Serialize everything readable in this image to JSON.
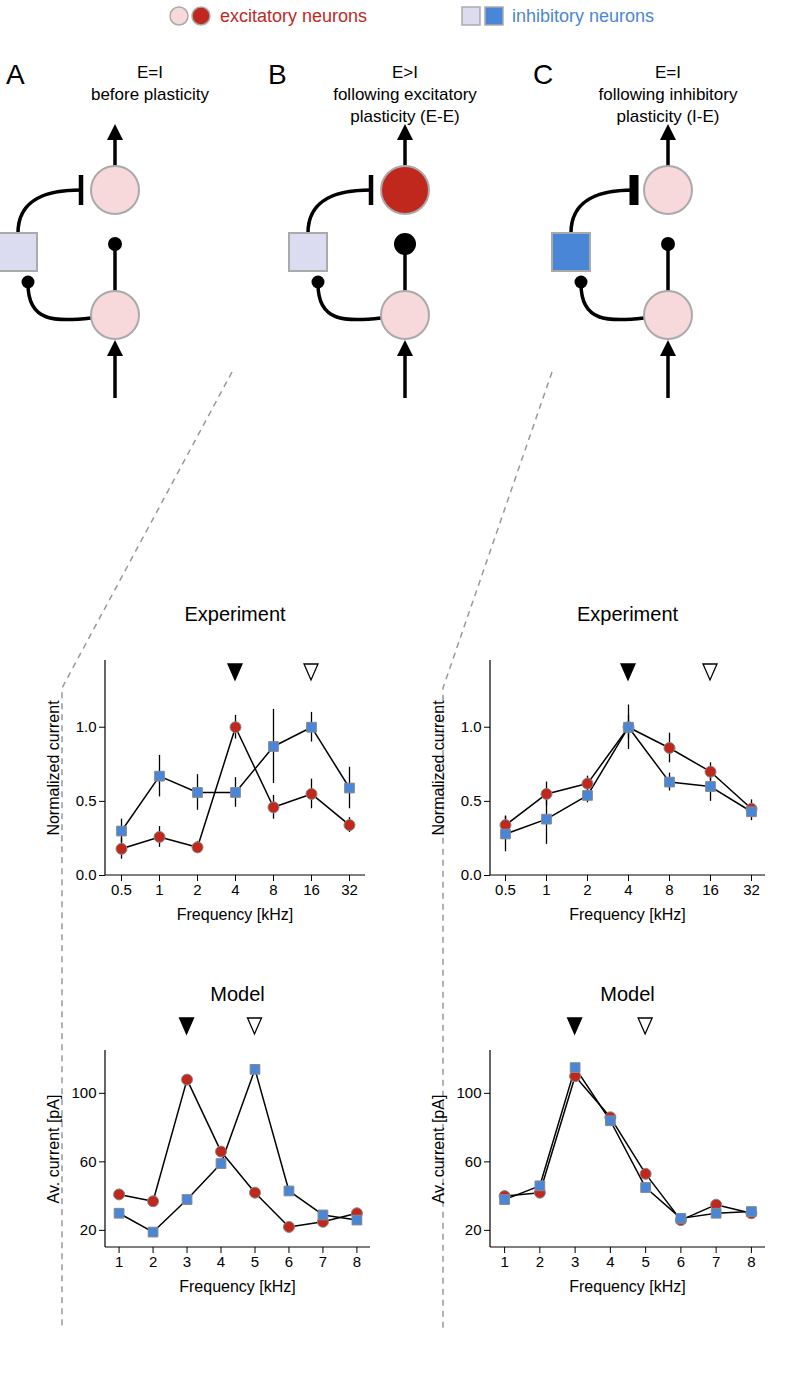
{
  "legend": {
    "items": [
      {
        "label": "excitatory neurons",
        "marker": "circle",
        "colors": [
          "#f7d9dc",
          "#c0281e"
        ]
      },
      {
        "label": "inhibitory neurons",
        "marker": "square",
        "colors": [
          "#dcdcf0",
          "#4a86d8"
        ]
      }
    ]
  },
  "diagram": {
    "panels": [
      {
        "label": "A",
        "title": [
          "E=I",
          "before plasticity"
        ],
        "potentiated": null
      },
      {
        "label": "B",
        "title": [
          "E>I",
          "following excitatory",
          "plasticity (E-E)"
        ],
        "potentiated": "E-E"
      },
      {
        "label": "C",
        "title": [
          "E=I",
          "following inhibitory",
          "plasticity (I-E)"
        ],
        "potentiated": "I-E"
      }
    ]
  },
  "chart_data": [
    {
      "type": "line",
      "title": "Experiment",
      "x_label": "Frequency [kHz]",
      "y_label": "Normalized current",
      "categories": [
        "0.5",
        "1",
        "2",
        "4",
        "8",
        "16",
        "32"
      ],
      "ylim": [
        0,
        1.45
      ],
      "yticks": [
        {
          "value": 0,
          "label": "0.0"
        },
        {
          "value": 0.5,
          "label": "0.5"
        },
        {
          "value": 1,
          "label": "1.0"
        }
      ],
      "series": [
        {
          "name": "excitatory neurons",
          "color": "#c0281e",
          "marker": "circle",
          "values": [
            0.18,
            0.26,
            0.19,
            1.0,
            0.46,
            0.55,
            0.34
          ],
          "errors": [
            0.07,
            0.07,
            0.04,
            0.08,
            0.08,
            0.1,
            0.05
          ]
        },
        {
          "name": "inhibitory neurons",
          "color": "#4a86d8",
          "marker": "square",
          "values": [
            0.3,
            0.67,
            0.56,
            0.56,
            0.87,
            1.0,
            0.59
          ],
          "errors": [
            0.08,
            0.14,
            0.12,
            0.1,
            0.25,
            0.1,
            0.14
          ]
        }
      ],
      "annotations": [
        {
          "x": "4",
          "marker": "filled_triangle"
        },
        {
          "x": "16",
          "marker": "open_triangle"
        }
      ]
    },
    {
      "type": "line",
      "title": "Experiment",
      "x_label": "Frequency [kHz]",
      "y_label": "Normalized current",
      "categories": [
        "0.5",
        "1",
        "2",
        "4",
        "8",
        "16",
        "32"
      ],
      "ylim": [
        0,
        1.45
      ],
      "yticks": [
        {
          "value": 0,
          "label": "0.0"
        },
        {
          "value": 0.5,
          "label": "0.5"
        },
        {
          "value": 1,
          "label": "1.0"
        }
      ],
      "series": [
        {
          "name": "excitatory neurons",
          "color": "#c0281e",
          "marker": "circle",
          "values": [
            0.34,
            0.55,
            0.62,
            1.0,
            0.86,
            0.7,
            0.45
          ],
          "errors": [
            0.06,
            0.08,
            0.05,
            0.15,
            0.1,
            0.06,
            0.06
          ]
        },
        {
          "name": "inhibitory neurons",
          "color": "#4a86d8",
          "marker": "square",
          "values": [
            0.28,
            0.38,
            0.54,
            1.0,
            0.63,
            0.6,
            0.43
          ],
          "errors": [
            0.12,
            0.17,
            0.05,
            0.08,
            0.06,
            0.1,
            0.06
          ]
        }
      ],
      "annotations": [
        {
          "x": "4",
          "marker": "filled_triangle"
        },
        {
          "x": "16",
          "marker": "open_triangle"
        }
      ]
    },
    {
      "type": "line",
      "title": "Model",
      "x_label": "Frequency [kHz]",
      "y_label": "Av. current [pA]",
      "x": [
        1,
        2,
        3,
        4,
        5,
        6,
        7,
        8
      ],
      "xlim": [
        0.6,
        8.4
      ],
      "xticks": [
        1,
        2,
        3,
        4,
        5,
        6,
        7,
        8
      ],
      "ylim": [
        10,
        125
      ],
      "yticks": [
        20,
        60,
        100
      ],
      "series": [
        {
          "name": "excitatory neurons",
          "color": "#c0281e",
          "marker": "circle",
          "values": [
            41,
            37,
            108,
            66,
            42,
            22,
            25,
            30
          ]
        },
        {
          "name": "inhibitory neurons",
          "color": "#4a86d8",
          "marker": "square",
          "values": [
            30,
            19,
            38,
            59,
            114,
            43,
            29,
            26
          ]
        }
      ],
      "annotations": [
        {
          "x": 3,
          "marker": "filled_triangle"
        },
        {
          "x": 5,
          "marker": "open_triangle"
        }
      ]
    },
    {
      "type": "line",
      "title": "Model",
      "x_label": "Frequency [kHz]",
      "y_label": "Av. current [pA]",
      "x": [
        1,
        2,
        3,
        4,
        5,
        6,
        7,
        8
      ],
      "xlim": [
        0.6,
        8.4
      ],
      "xticks": [
        1,
        2,
        3,
        4,
        5,
        6,
        7,
        8
      ],
      "ylim": [
        10,
        125
      ],
      "yticks": [
        20,
        60,
        100
      ],
      "series": [
        {
          "name": "excitatory neurons",
          "color": "#c0281e",
          "marker": "circle",
          "values": [
            40,
            42,
            110,
            86,
            53,
            26,
            35,
            30
          ]
        },
        {
          "name": "inhibitory neurons",
          "color": "#4a86d8",
          "marker": "square",
          "values": [
            38,
            46,
            115,
            84,
            45,
            27,
            30,
            31
          ]
        }
      ],
      "annotations": [
        {
          "x": 3,
          "marker": "filled_triangle"
        },
        {
          "x": 5,
          "marker": "open_triangle"
        }
      ]
    }
  ]
}
